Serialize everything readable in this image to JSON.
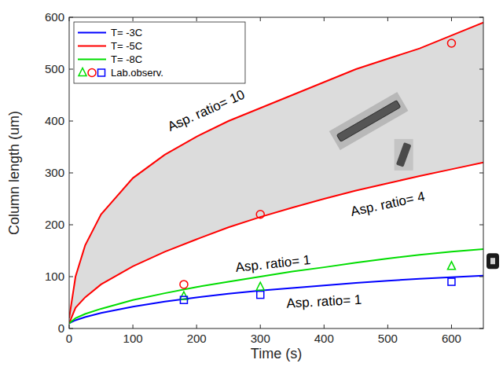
{
  "chart_data": {
    "type": "line",
    "x_label": "Time (s)",
    "y_label": "Column length (um)",
    "xlim": [
      0,
      650
    ],
    "xticks": [
      0,
      100,
      200,
      300,
      400,
      500,
      600
    ],
    "ylim": [
      0,
      600
    ],
    "yticks": [
      0,
      100,
      200,
      300,
      400,
      500,
      600
    ],
    "grid": false,
    "legend": "top-left",
    "series": [
      {
        "name": "T= -3C",
        "color": "#0000ff",
        "type": "line",
        "line_style": "solid",
        "x": [
          0,
          10,
          25,
          50,
          100,
          150,
          200,
          250,
          300,
          350,
          400,
          450,
          500,
          550,
          600,
          650
        ],
        "values": [
          10,
          16,
          22,
          30,
          42,
          52,
          60,
          67,
          73,
          78,
          83,
          88,
          92,
          96,
          99,
          102
        ]
      },
      {
        "name": "T= -5C",
        "color": "#ff0000",
        "type": "line",
        "line_style": "solid",
        "x": [
          0,
          10,
          25,
          50,
          100,
          150,
          200,
          250,
          300,
          350,
          400,
          450,
          500,
          550,
          600,
          650
        ],
        "values": [
          20,
          100,
          160,
          220,
          290,
          335,
          370,
          400,
          425,
          450,
          475,
          500,
          520,
          540,
          565,
          590
        ]
      },
      {
        "name": "T= -5C",
        "color": "#ff0000",
        "type": "line",
        "line_style": "solid",
        "x": [
          0,
          10,
          25,
          50,
          100,
          150,
          200,
          250,
          300,
          350,
          400,
          450,
          500,
          550,
          600,
          650
        ],
        "values": [
          10,
          40,
          60,
          85,
          120,
          148,
          172,
          195,
          215,
          233,
          250,
          266,
          280,
          294,
          307,
          320
        ]
      },
      {
        "name": "T= -8C",
        "color": "#00dd00",
        "type": "line",
        "line_style": "solid",
        "x": [
          0,
          10,
          25,
          50,
          100,
          150,
          200,
          250,
          300,
          350,
          400,
          450,
          500,
          550,
          600,
          650
        ],
        "values": [
          10,
          20,
          28,
          38,
          55,
          68,
          80,
          90,
          100,
          110,
          118,
          127,
          135,
          142,
          148,
          153
        ]
      },
      {
        "name": "Lab.observ.",
        "color": "#00dd00",
        "type": "scatter",
        "marker": "triangle",
        "x": [
          180,
          300,
          600
        ],
        "values": [
          62,
          80,
          120
        ]
      },
      {
        "name": "Lab.observ.",
        "color": "#ff0000",
        "type": "scatter",
        "marker": "circle",
        "x": [
          180,
          300,
          600
        ],
        "values": [
          85,
          220,
          550
        ]
      },
      {
        "name": "Lab.observ.",
        "color": "#0000ff",
        "type": "scatter",
        "marker": "square",
        "x": [
          180,
          300,
          600
        ],
        "values": [
          55,
          65,
          90
        ]
      }
    ],
    "annotations": [
      {
        "text": "Asp. ratio= 10",
        "x": 215,
        "y": 420
      },
      {
        "text": "Asp. ratio= 4",
        "x": 500,
        "y": 240
      },
      {
        "text": "Asp. ratio= 1",
        "x": 320,
        "y": 125
      },
      {
        "text": "Asp. ratio= 1",
        "x": 400,
        "y": 52
      }
    ]
  }
}
